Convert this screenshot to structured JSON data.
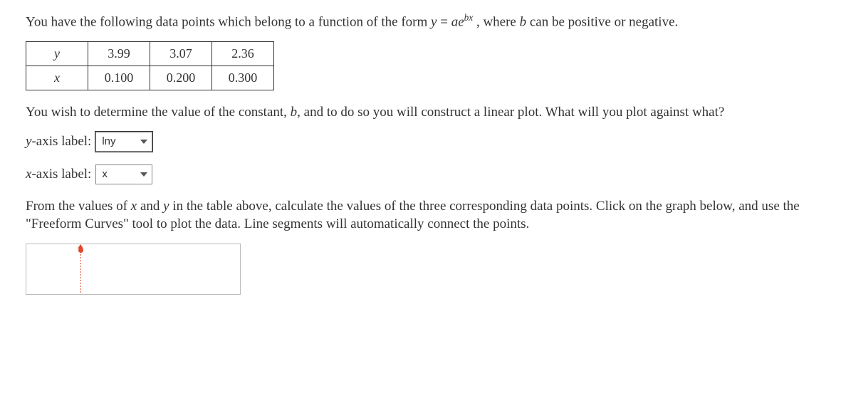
{
  "intro_pre": "You have the following data points which belong to a function of the form ",
  "equation_lhs": "y",
  "equation_eq": " = ",
  "equation_a": "a",
  "equation_e": "e",
  "equation_exp": "bx",
  "intro_post": ", where ",
  "intro_b": "b",
  "intro_tail": " can be positive or negative.",
  "table": {
    "row_y_label": "y",
    "row_x_label": "x",
    "y_values": [
      "3.99",
      "3.07",
      "2.36"
    ],
    "x_values": [
      "0.100",
      "0.200",
      "0.300"
    ]
  },
  "prompt1_pre": "You wish to determine the value of the constant, ",
  "prompt1_b": "b",
  "prompt1_post": ", and to do so you will construct a linear plot. What will you plot against what?",
  "y_axis_label_text": "y",
  "y_axis_label_suffix": "-axis label:",
  "x_axis_label_text": "x",
  "x_axis_label_suffix": "-axis label:",
  "select_y_value": "lny",
  "select_x_value": "x",
  "prompt2_pre": "From the values of ",
  "prompt2_x": "x",
  "prompt2_and": " and ",
  "prompt2_y": "y",
  "prompt2_post": " in the table above, calculate the values of the three corresponding data points. Click on the graph below, and use the \"Freeform Curves\" tool to plot the data. Line segments will automatically connect the points.",
  "colors": {
    "accent": "#e04a2b",
    "border": "#333333"
  }
}
